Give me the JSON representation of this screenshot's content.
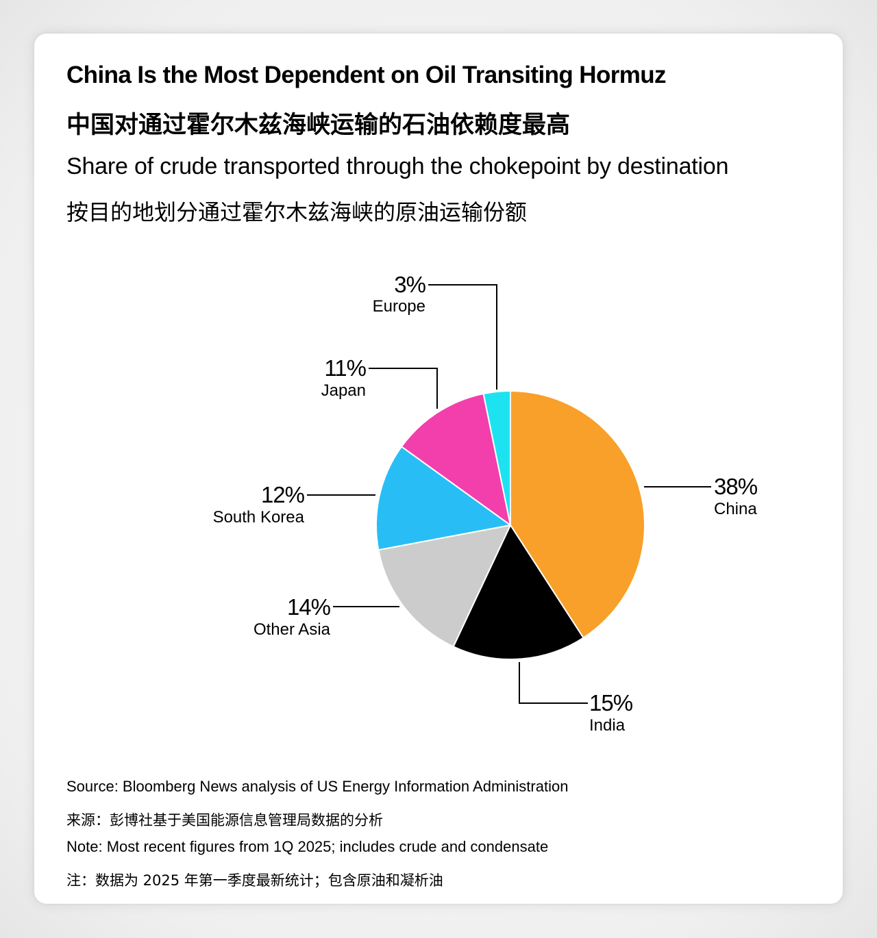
{
  "title_en": "China Is the Most Dependent on Oil Transiting Hormuz",
  "title_zh": "中国对通过霍尔木兹海峡运输的石油依赖度最高",
  "subtitle_en": "Share of crude transported through the chokepoint by destination",
  "subtitle_zh": "按目的地划分通过霍尔木兹海峡的原油运输份额",
  "source_en": "Source: Bloomberg News analysis of US Energy Information Administration",
  "source_zh": "来源：彭博社基于美国能源信息管理局数据的分析",
  "note_en": "Note: Most recent figures from 1Q 2025; includes crude and condensate",
  "note_zh": "注：数据为 2025 年第一季度最新统计；包含原油和凝析油",
  "chart_data": {
    "type": "pie",
    "title": "China Is the Most Dependent on Oil Transiting Hormuz",
    "subtitle": "Share of crude transported through the chokepoint by destination",
    "unit": "%",
    "slices": [
      {
        "label": "China",
        "value": 38,
        "value_label": "38%",
        "color": "#F9A02A"
      },
      {
        "label": "India",
        "value": 15,
        "value_label": "15%",
        "color": "#000000"
      },
      {
        "label": "Other Asia",
        "value": 14,
        "value_label": "14%",
        "color": "#CCCCCC"
      },
      {
        "label": "South Korea",
        "value": 12,
        "value_label": "12%",
        "color": "#28BEF5"
      },
      {
        "label": "Japan",
        "value": 11,
        "value_label": "11%",
        "color": "#F23FAB"
      },
      {
        "label": "Europe",
        "value": 3,
        "value_label": "3%",
        "color": "#1DE3F0"
      }
    ]
  }
}
